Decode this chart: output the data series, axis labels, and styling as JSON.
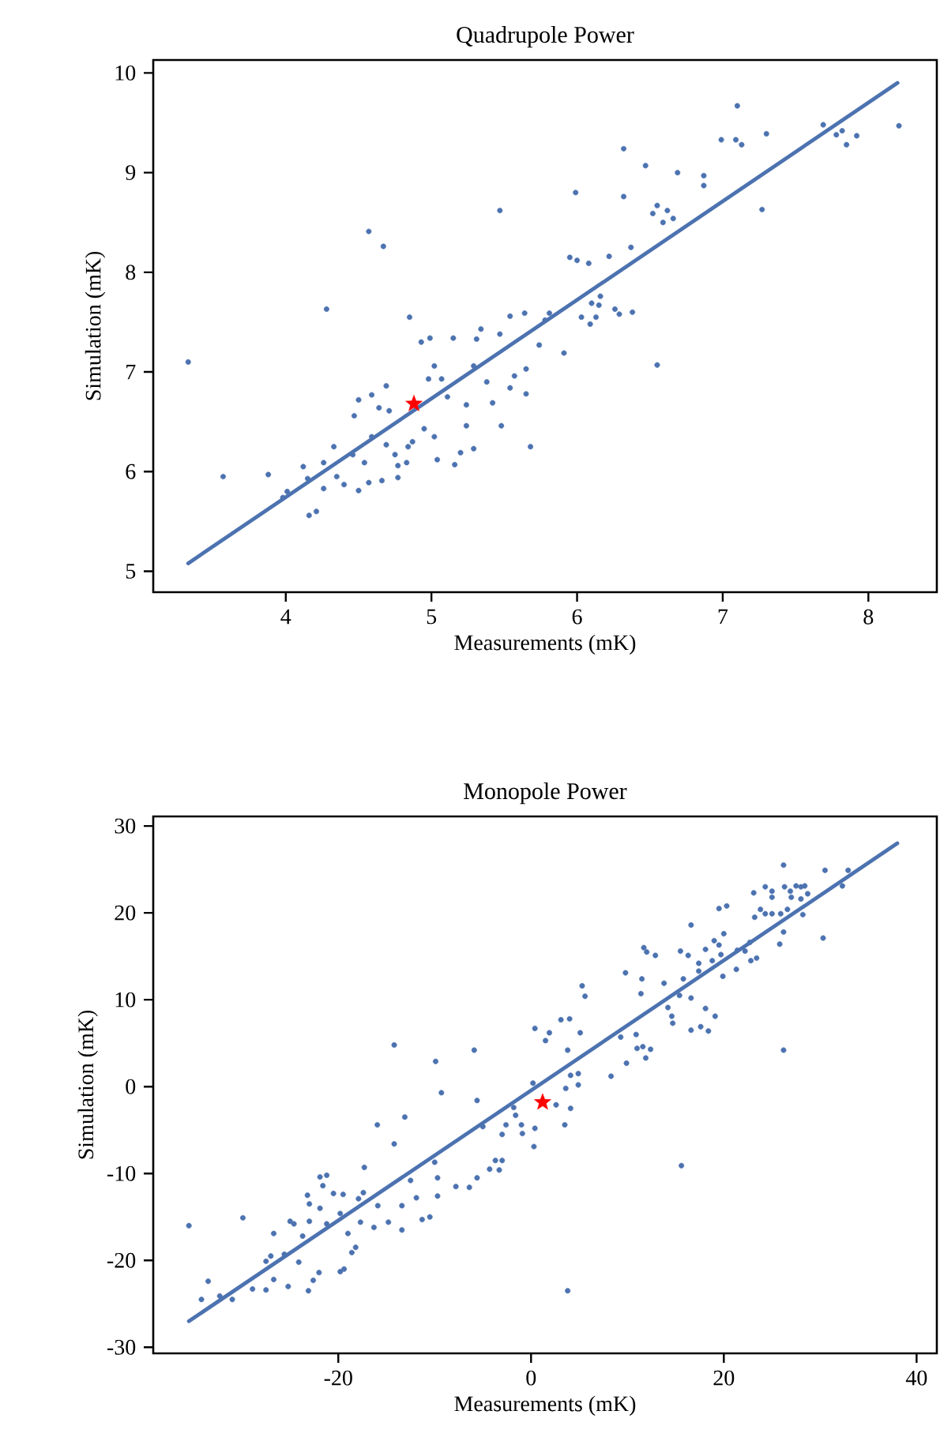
{
  "chart_data": [
    {
      "type": "scatter",
      "title": "Quadrupole Power",
      "xlabel": "Measurements (mK)",
      "ylabel": "Simulation (mK)",
      "xlim": [
        3.09,
        8.47
      ],
      "ylim": [
        4.79,
        10.13
      ],
      "xticks": [
        4,
        5,
        6,
        7,
        8
      ],
      "yticks": [
        5,
        6,
        7,
        8,
        9,
        10
      ],
      "series": [
        {
          "marker": "circle",
          "color": "#4c72b0",
          "x": [
            3.33,
            3.57,
            3.88,
            3.98,
            4.16,
            4.21,
            4.12,
            4.26,
            4.33,
            4.28,
            4.57,
            4.67,
            4.85,
            4.59,
            4.69,
            4.5,
            4.47,
            4.64,
            4.71,
            4.5,
            4.57,
            4.66,
            4.77,
            4.77,
            4.83,
            4.84,
            4.54,
            4.4,
            4.35,
            4.26,
            4.46,
            4.59,
            4.69,
            4.93,
            4.99,
            5.02,
            4.98,
            5.07,
            4.95,
            5.02,
            5.04,
            5.16,
            5.2,
            5.24,
            5.29,
            5.15,
            5.31,
            5.34,
            5.29,
            5.38,
            5.11,
            5.24,
            5.42,
            5.48,
            5.54,
            5.57,
            5.65,
            5.65,
            5.68,
            5.47,
            5.47,
            5.54,
            5.64,
            5.74,
            4.01,
            4.15,
            4.75,
            4.87,
            5.91,
            5.78,
            5.81,
            5.95,
            6.0,
            6.08,
            5.99,
            6.22,
            6.37,
            6.32,
            6.32,
            6.47,
            6.69,
            6.52,
            6.55,
            6.59,
            6.62,
            6.66,
            6.87,
            6.87,
            6.99,
            7.1,
            7.09,
            7.13,
            7.3,
            7.27,
            7.69,
            7.78,
            7.82,
            7.85,
            7.92,
            8.21,
            6.03,
            6.1,
            6.15,
            6.16,
            6.13,
            6.09,
            6.26,
            6.29,
            6.38,
            6.55
          ],
          "values": [
            7.1,
            5.95,
            5.97,
            5.74,
            5.56,
            5.6,
            6.05,
            6.09,
            6.25,
            7.63,
            8.41,
            8.26,
            7.55,
            6.77,
            6.86,
            6.72,
            6.56,
            6.64,
            6.61,
            5.81,
            5.89,
            5.91,
            5.94,
            6.06,
            6.09,
            6.25,
            6.09,
            5.87,
            5.95,
            5.83,
            6.17,
            6.35,
            6.27,
            7.3,
            7.34,
            7.06,
            6.93,
            6.93,
            6.43,
            6.35,
            6.12,
            6.07,
            6.19,
            6.46,
            6.23,
            7.34,
            7.33,
            7.43,
            7.06,
            6.9,
            6.75,
            6.67,
            6.69,
            6.46,
            6.84,
            6.96,
            7.03,
            6.78,
            6.25,
            8.62,
            7.38,
            7.56,
            7.59,
            7.27,
            5.8,
            5.93,
            6.17,
            6.3,
            7.19,
            7.52,
            7.59,
            8.15,
            8.12,
            8.09,
            8.8,
            8.16,
            8.25,
            8.76,
            9.24,
            9.07,
            9.0,
            8.59,
            8.67,
            8.5,
            8.62,
            8.54,
            8.97,
            8.87,
            9.33,
            9.67,
            9.33,
            9.28,
            9.39,
            8.63,
            9.48,
            9.38,
            9.42,
            9.28,
            9.37,
            9.47,
            7.55,
            7.69,
            7.67,
            7.76,
            7.55,
            7.48,
            7.63,
            7.58,
            7.6,
            7.07
          ]
        },
        {
          "type": "line",
          "color": "#4c72b0",
          "line_style": "solid",
          "x": [
            3.33,
            8.2
          ],
          "values": [
            5.08,
            9.9
          ]
        },
        {
          "marker": "star",
          "color": "#ff0000",
          "x": [
            4.88
          ],
          "values": [
            6.68
          ]
        }
      ]
    },
    {
      "type": "scatter",
      "title": "Monopole Power",
      "xlabel": "Measurements (mK)",
      "ylabel": "Simulation (mK)",
      "xlim": [
        -39.2,
        42.1
      ],
      "ylim": [
        -30.7,
        31.1
      ],
      "xticks": [
        -20,
        0,
        20,
        40
      ],
      "yticks": [
        -30,
        -20,
        -10,
        0,
        10,
        20,
        30
      ],
      "series": [
        {
          "marker": "circle",
          "color": "#4c72b0",
          "x": [
            -35.5,
            -34.2,
            -33.5,
            -32.3,
            -31.0,
            -29.9,
            -28.9,
            -27.5,
            -27.5,
            -27.0,
            -26.7,
            -26.7,
            -25.6,
            -25.2,
            -25.0,
            -24.6,
            -24.1,
            -23.7,
            -23.1,
            -22.6,
            -23.2,
            -23.0,
            -23.0,
            -21.9,
            -21.2,
            -21.6,
            -21.9,
            -22.0,
            -21.2,
            -20.5,
            -19.8,
            -19.4,
            -19.8,
            -19.5,
            -19.0,
            -18.6,
            -18.2,
            -17.7,
            -17.3,
            -17.4,
            -17.9,
            -16.3,
            -15.9,
            -15.95,
            -14.2,
            -14.2,
            -14.8,
            -13.4,
            -13.1,
            -13.4,
            -12.5,
            -11.9,
            -11.3,
            -10.5,
            -9.9,
            -9.3,
            -9.7,
            -10.0,
            -9.7,
            -7.8,
            -6.4,
            -5.9,
            -5.6,
            -5.6,
            -5.0,
            -4.3,
            -3.7,
            -3.3,
            -3.0,
            -3.0,
            -2.6,
            -1.8,
            -1.6,
            -1.0,
            -0.9,
            0.3,
            0.4,
            0.4,
            0.2,
            1.5,
            1.9,
            3.1,
            4.0,
            3.8,
            5.1,
            5.3,
            5.6,
            4.1,
            4.9,
            4.9,
            3.6,
            4.1,
            3.5,
            2.6,
            3.8,
            8.3,
            9.3,
            9.9,
            9.8,
            10.9,
            11.0,
            11.6,
            11.9,
            12.4,
            11.4,
            11.5,
            11.7,
            12.0,
            12.9,
            13.8,
            14.2,
            14.6,
            14.7,
            15.5,
            15.8,
            15.4,
            16.3,
            16.6,
            16.6,
            16.6,
            15.6,
            17.4,
            17.4,
            17.6,
            18.1,
            18.1,
            18.4,
            18.8,
            19.1,
            19.0,
            19.5,
            19.7,
            19.9,
            20.0,
            19.5,
            20.3,
            21.3,
            21.4,
            22.2,
            22.8,
            22.7,
            23.4,
            23.1,
            23.2,
            23.8,
            24.3,
            25.0,
            24.3,
            25.0,
            25.0,
            25.9,
            25.8,
            26.2,
            26.2,
            26.2,
            26.3,
            26.6,
            26.9,
            27.0,
            27.5,
            28.0,
            28.4,
            28.0,
            28.7,
            28.2,
            30.3,
            30.5,
            32.3,
            32.9
          ],
          "values": [
            -16.0,
            -24.5,
            -22.4,
            -24.1,
            -24.5,
            -15.1,
            -23.3,
            -23.4,
            -20.1,
            -19.5,
            -22.2,
            -16.9,
            -19.3,
            -23.0,
            -15.5,
            -15.8,
            -20.2,
            -17.2,
            -23.5,
            -22.3,
            -12.5,
            -13.5,
            -15.5,
            -10.4,
            -10.2,
            -11.4,
            -14.0,
            -21.4,
            -15.8,
            -12.3,
            -21.3,
            -21.0,
            -14.6,
            -12.4,
            -16.9,
            -19.1,
            -18.5,
            -15.6,
            -9.3,
            -12.2,
            -12.9,
            -16.2,
            -13.7,
            -4.4,
            -6.6,
            4.8,
            -15.6,
            -13.7,
            -3.5,
            -16.5,
            -10.8,
            -12.8,
            -15.3,
            -15.0,
            2.9,
            -0.7,
            -10.5,
            -8.7,
            -12.6,
            -11.5,
            -11.6,
            4.2,
            -1.6,
            -10.5,
            -4.6,
            -9.5,
            -8.5,
            -9.6,
            -8.5,
            -5.5,
            -4.4,
            -2.4,
            -3.3,
            -4.4,
            -5.4,
            -6.9,
            -4.8,
            6.7,
            0.4,
            5.3,
            6.2,
            7.7,
            7.8,
            4.2,
            6.2,
            11.6,
            10.4,
            1.3,
            1.5,
            0.2,
            -0.2,
            -2.5,
            -4.4,
            -2.1,
            -23.5,
            1.2,
            5.7,
            2.7,
            13.1,
            6.0,
            4.4,
            4.6,
            3.3,
            4.3,
            10.7,
            12.4,
            16.0,
            15.5,
            15.1,
            11.9,
            9.1,
            8.1,
            7.3,
            15.6,
            12.4,
            10.5,
            15.1,
            18.6,
            10.2,
            6.5,
            -9.1,
            14.2,
            13.3,
            6.9,
            15.8,
            9.0,
            6.4,
            14.5,
            8.1,
            16.8,
            16.3,
            15.2,
            12.7,
            17.6,
            20.5,
            20.8,
            13.5,
            15.7,
            15.6,
            14.5,
            16.6,
            14.8,
            22.3,
            19.5,
            20.4,
            19.9,
            19.9,
            23.0,
            22.5,
            21.8,
            19.9,
            16.4,
            17.8,
            4.2,
            25.5,
            23.0,
            20.4,
            22.5,
            21.8,
            23.1,
            23.0,
            23.1,
            21.6,
            22.2,
            19.8,
            17.1,
            24.9,
            23.1,
            24.9
          ]
        },
        {
          "type": "line",
          "color": "#4c72b0",
          "line_style": "solid",
          "x": [
            -35.5,
            38.0
          ],
          "values": [
            -27.0,
            28.0
          ]
        },
        {
          "marker": "star",
          "color": "#ff0000",
          "x": [
            1.2
          ],
          "values": [
            -1.8
          ]
        }
      ]
    }
  ]
}
